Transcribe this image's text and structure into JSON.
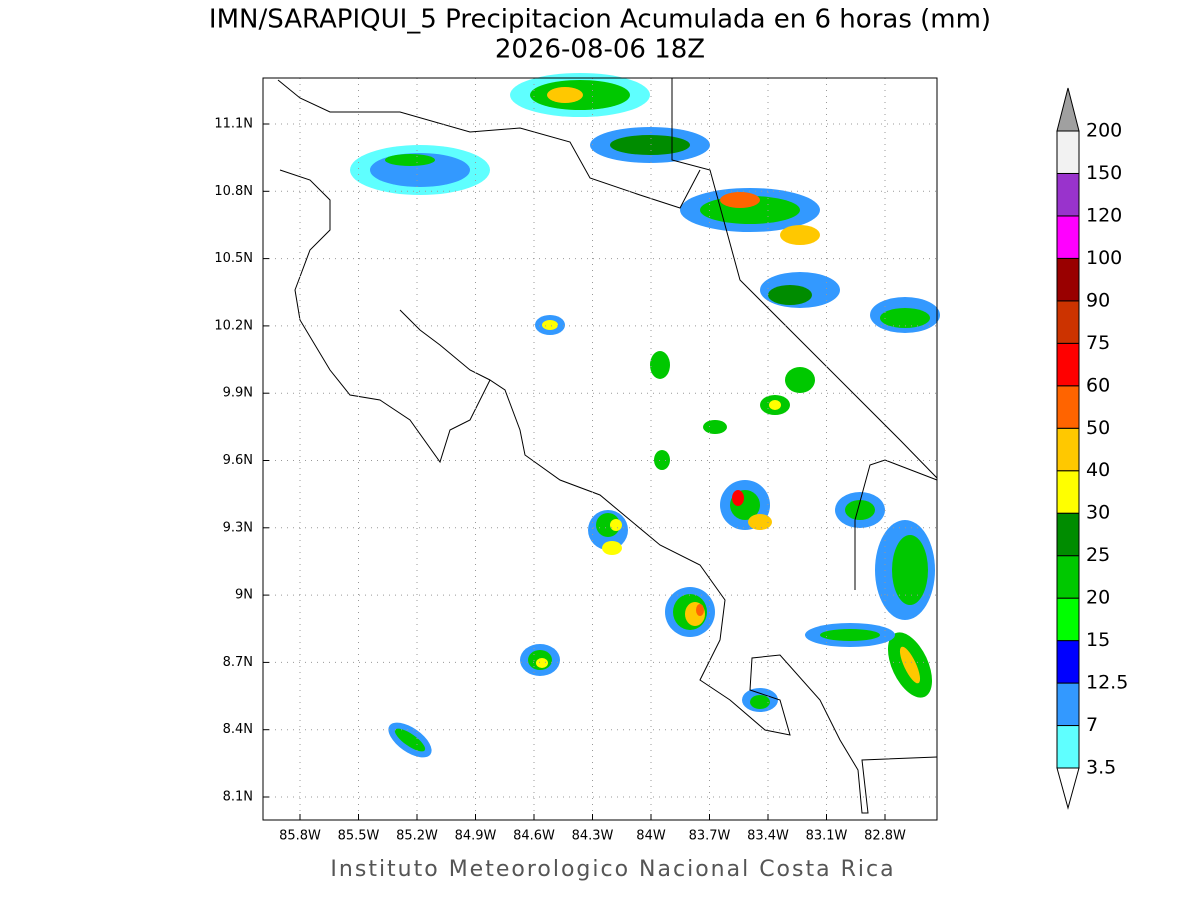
{
  "header": {
    "title": "IMN/SARAPIQUI_5 Precipitacion Acumulada en 6 horas (mm)",
    "subtitle": "2026-08-06 18Z"
  },
  "map": {
    "lon_labels": [
      "85.8W",
      "85.5W",
      "85.2W",
      "84.9W",
      "84.6W",
      "84.3W",
      "84W",
      "83.7W",
      "83.4W",
      "83.1W",
      "82.8W"
    ],
    "lat_labels": [
      "11.1N",
      "10.8N",
      "10.5N",
      "10.2N",
      "9.9N",
      "9.6N",
      "9.3N",
      "9N",
      "8.7N",
      "8.4N",
      "8.1N"
    ]
  },
  "colorbar": {
    "levels": [
      3.5,
      7,
      12.5,
      15,
      20,
      25,
      30,
      40,
      50,
      60,
      75,
      90,
      100,
      120,
      150,
      200
    ],
    "colors": [
      "#5fffff",
      "#3399ff",
      "#0000ff",
      "#00ff00",
      "#00c800",
      "#008c00",
      "#ffff00",
      "#ffc800",
      "#ff6400",
      "#ff0000",
      "#cc3300",
      "#990000",
      "#ff00ff",
      "#9933cc",
      "#f2f2f2"
    ]
  },
  "footer": "Instituto Meteorologico Nacional Costa Rica"
}
